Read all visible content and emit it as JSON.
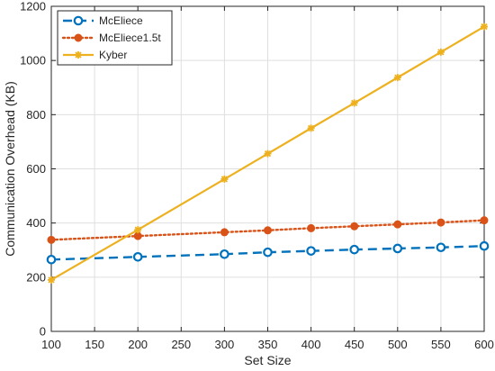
{
  "chart_data": {
    "type": "line",
    "xlabel": "Set Size",
    "ylabel": "Communication Overhead (KB)",
    "xlim": [
      100,
      600
    ],
    "ylim": [
      0,
      1200
    ],
    "x_ticks": [
      "100",
      "150",
      "200",
      "250",
      "300",
      "350",
      "400",
      "450",
      "500",
      "550",
      "600"
    ],
    "y_ticks": [
      "0",
      "200",
      "400",
      "600",
      "800",
      "1000",
      "1200"
    ],
    "grid": true,
    "legend_position": "top-left",
    "series": [
      {
        "name": "McEliece",
        "color": "#0072BD",
        "line_style": "dashed",
        "marker": "circle",
        "x": [
          100,
          200,
          300,
          350,
          400,
          450,
          500,
          550,
          600
        ],
        "y": [
          265,
          275,
          285,
          292,
          297,
          302,
          306,
          310,
          315
        ]
      },
      {
        "name": "McEliece1.5t",
        "color": "#D95319",
        "line_style": "dotted",
        "marker": "filled-circle",
        "x": [
          100,
          200,
          300,
          350,
          400,
          450,
          500,
          550,
          600
        ],
        "y": [
          338,
          352,
          366,
          373,
          381,
          388,
          395,
          402,
          410
        ]
      },
      {
        "name": "Kyber",
        "color": "#EDB120",
        "line_style": "solid",
        "marker": "star",
        "x": [
          100,
          200,
          300,
          350,
          400,
          450,
          500,
          550,
          600
        ],
        "y": [
          190,
          375,
          562,
          656,
          750,
          843,
          937,
          1031,
          1125
        ]
      }
    ]
  }
}
